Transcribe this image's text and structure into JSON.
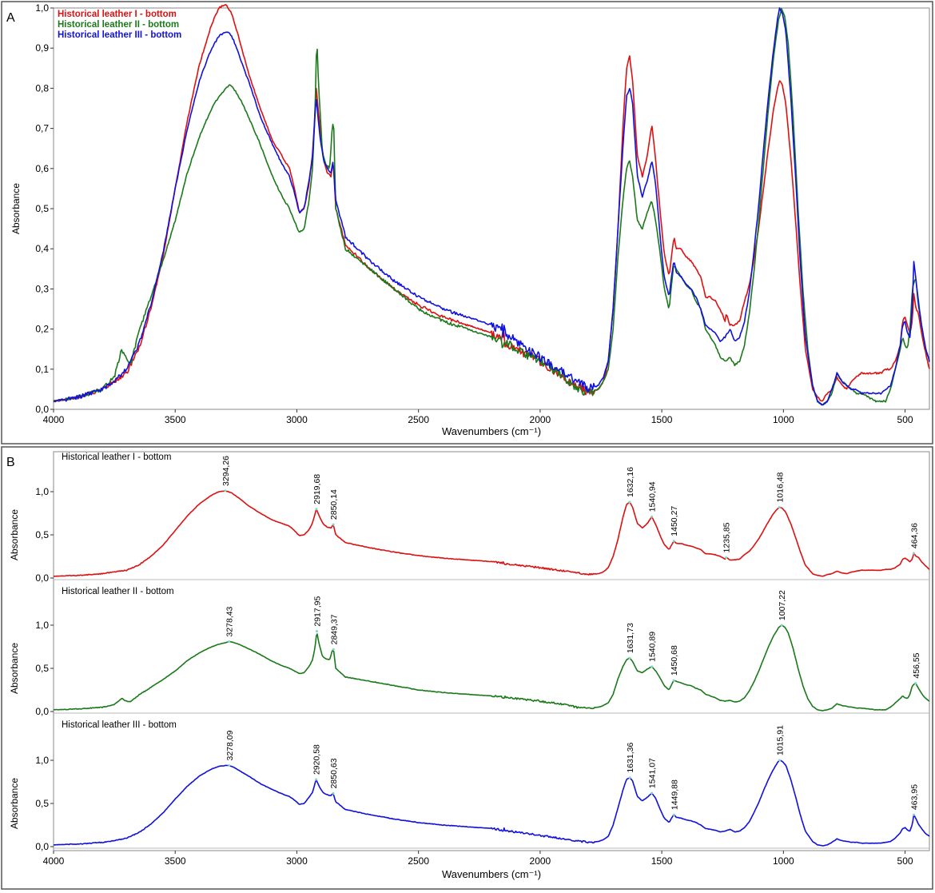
{
  "figure": {
    "panel_a_label": "A",
    "panel_b_label": "B"
  },
  "colors": {
    "leather_1": "#dd1111",
    "leather_2": "#1a7a1a",
    "leather_3": "#1111dd"
  },
  "chart_data": [
    {
      "type": "line",
      "panel": "A",
      "xlabel": "Wavenumbers (cm⁻¹)",
      "ylabel": "Absorbance",
      "xlim": [
        4000,
        400
      ],
      "ylim": [
        0,
        1.0
      ],
      "x_ticks": [
        4000,
        3500,
        3000,
        2500,
        2000,
        1500,
        1000,
        500
      ],
      "x_tick_labels": [
        "4000",
        "3500",
        "3000",
        "2500",
        "2000",
        "1500",
        "1000",
        "500"
      ],
      "y_ticks": [
        0,
        0.1,
        0.2,
        0.3,
        0.4,
        0.5,
        0.6,
        0.7,
        0.8,
        0.9,
        1.0
      ],
      "y_tick_labels": [
        "0,0",
        "0,1",
        "0,2",
        "0,3",
        "0,4",
        "0,5",
        "0,6",
        "0,7",
        "0,8",
        "0,9",
        "1,0"
      ],
      "legend_position": "top-left",
      "series": [
        {
          "name": "Historical leather I - bottom",
          "color": "#dd1111",
          "x": [
            4000,
            3900,
            3800,
            3750,
            3700,
            3650,
            3600,
            3550,
            3500,
            3450,
            3400,
            3350,
            3320,
            3294,
            3270,
            3240,
            3200,
            3150,
            3100,
            3060,
            3030,
            3010,
            2990,
            2970,
            2950,
            2935,
            2920,
            2905,
            2890,
            2875,
            2860,
            2850,
            2840,
            2800,
            2700,
            2600,
            2500,
            2400,
            2300,
            2200,
            2150,
            2100,
            2000,
            1900,
            1850,
            1800,
            1760,
            1740,
            1720,
            1700,
            1680,
            1660,
            1645,
            1632,
            1620,
            1600,
            1580,
            1560,
            1541,
            1525,
            1505,
            1490,
            1470,
            1460,
            1450,
            1440,
            1420,
            1400,
            1380,
            1360,
            1340,
            1320,
            1300,
            1280,
            1260,
            1240,
            1235,
            1220,
            1200,
            1180,
            1160,
            1140,
            1120,
            1100,
            1080,
            1060,
            1040,
            1025,
            1016,
            1005,
            990,
            970,
            950,
            930,
            910,
            880,
            860,
            840,
            820,
            800,
            780,
            760,
            740,
            720,
            700,
            680,
            650,
            620,
            600,
            580,
            560,
            540,
            520,
            510,
            500,
            490,
            480,
            470,
            464,
            455,
            445,
            430,
            415,
            400
          ],
          "y": [
            0.02,
            0.03,
            0.05,
            0.07,
            0.09,
            0.15,
            0.25,
            0.38,
            0.55,
            0.72,
            0.86,
            0.96,
            1.0,
            1.01,
            0.99,
            0.93,
            0.84,
            0.75,
            0.67,
            0.63,
            0.6,
            0.55,
            0.49,
            0.5,
            0.56,
            0.64,
            0.8,
            0.7,
            0.62,
            0.59,
            0.58,
            0.62,
            0.5,
            0.41,
            0.35,
            0.3,
            0.26,
            0.23,
            0.21,
            0.19,
            0.17,
            0.15,
            0.12,
            0.08,
            0.06,
            0.04,
            0.05,
            0.07,
            0.12,
            0.25,
            0.45,
            0.7,
            0.85,
            0.88,
            0.82,
            0.63,
            0.58,
            0.63,
            0.71,
            0.62,
            0.48,
            0.39,
            0.33,
            0.38,
            0.43,
            0.4,
            0.4,
            0.38,
            0.37,
            0.35,
            0.33,
            0.28,
            0.28,
            0.27,
            0.25,
            0.22,
            0.24,
            0.21,
            0.21,
            0.22,
            0.27,
            0.31,
            0.38,
            0.46,
            0.56,
            0.66,
            0.75,
            0.8,
            0.82,
            0.81,
            0.76,
            0.63,
            0.47,
            0.3,
            0.15,
            0.05,
            0.03,
            0.02,
            0.04,
            0.05,
            0.08,
            0.06,
            0.05,
            0.07,
            0.08,
            0.09,
            0.09,
            0.09,
            0.09,
            0.1,
            0.1,
            0.12,
            0.16,
            0.22,
            0.23,
            0.21,
            0.19,
            0.22,
            0.29,
            0.25,
            0.24,
            0.18,
            0.14,
            0.1
          ]
        },
        {
          "name": "Historical leather II - bottom",
          "color": "#1a7a1a",
          "x": [
            4000,
            3900,
            3800,
            3750,
            3720,
            3705,
            3690,
            3680,
            3650,
            3600,
            3550,
            3500,
            3450,
            3400,
            3350,
            3320,
            3290,
            3278,
            3260,
            3230,
            3200,
            3150,
            3100,
            3060,
            3030,
            3010,
            2990,
            2970,
            2950,
            2935,
            2925,
            2918,
            2910,
            2895,
            2880,
            2865,
            2855,
            2849,
            2840,
            2800,
            2700,
            2600,
            2500,
            2400,
            2300,
            2200,
            2150,
            2100,
            2000,
            1900,
            1850,
            1800,
            1760,
            1740,
            1720,
            1700,
            1680,
            1660,
            1645,
            1632,
            1620,
            1600,
            1580,
            1560,
            1541,
            1525,
            1505,
            1490,
            1470,
            1460,
            1451,
            1440,
            1420,
            1400,
            1380,
            1360,
            1340,
            1320,
            1300,
            1280,
            1260,
            1240,
            1220,
            1200,
            1180,
            1160,
            1140,
            1120,
            1100,
            1080,
            1060,
            1040,
            1020,
            1007,
            995,
            980,
            960,
            940,
            920,
            900,
            880,
            860,
            840,
            820,
            800,
            780,
            760,
            740,
            720,
            700,
            680,
            650,
            620,
            600,
            580,
            560,
            540,
            520,
            510,
            500,
            490,
            480,
            470,
            457,
            445,
            430,
            415,
            400
          ],
          "y": [
            0.02,
            0.03,
            0.05,
            0.08,
            0.15,
            0.13,
            0.11,
            0.12,
            0.19,
            0.28,
            0.37,
            0.47,
            0.59,
            0.68,
            0.75,
            0.78,
            0.8,
            0.81,
            0.8,
            0.77,
            0.73,
            0.66,
            0.58,
            0.53,
            0.5,
            0.47,
            0.44,
            0.45,
            0.52,
            0.6,
            0.75,
            0.93,
            0.8,
            0.64,
            0.61,
            0.6,
            0.7,
            0.72,
            0.5,
            0.4,
            0.35,
            0.3,
            0.25,
            0.22,
            0.2,
            0.18,
            0.17,
            0.15,
            0.12,
            0.08,
            0.05,
            0.04,
            0.05,
            0.07,
            0.1,
            0.2,
            0.38,
            0.52,
            0.6,
            0.62,
            0.58,
            0.47,
            0.45,
            0.49,
            0.52,
            0.47,
            0.38,
            0.3,
            0.25,
            0.31,
            0.36,
            0.35,
            0.33,
            0.31,
            0.3,
            0.27,
            0.25,
            0.2,
            0.18,
            0.16,
            0.13,
            0.12,
            0.13,
            0.11,
            0.12,
            0.16,
            0.24,
            0.35,
            0.48,
            0.62,
            0.76,
            0.88,
            0.97,
            1.0,
            0.98,
            0.91,
            0.73,
            0.5,
            0.3,
            0.15,
            0.06,
            0.02,
            0.01,
            0.02,
            0.04,
            0.09,
            0.07,
            0.06,
            0.05,
            0.04,
            0.04,
            0.03,
            0.02,
            0.02,
            0.02,
            0.05,
            0.1,
            0.15,
            0.18,
            0.16,
            0.15,
            0.2,
            0.3,
            0.33,
            0.27,
            0.2,
            0.15,
            0.12
          ]
        },
        {
          "name": "Historical leather III - bottom",
          "color": "#1111dd",
          "x": [
            4000,
            3900,
            3800,
            3750,
            3700,
            3650,
            3600,
            3550,
            3500,
            3450,
            3400,
            3350,
            3320,
            3290,
            3278,
            3260,
            3230,
            3200,
            3150,
            3100,
            3060,
            3030,
            3010,
            2990,
            2970,
            2950,
            2935,
            2921,
            2905,
            2890,
            2875,
            2860,
            2851,
            2840,
            2800,
            2700,
            2600,
            2500,
            2400,
            2300,
            2200,
            2150,
            2100,
            2000,
            1900,
            1850,
            1800,
            1760,
            1740,
            1720,
            1700,
            1680,
            1660,
            1645,
            1631,
            1620,
            1600,
            1580,
            1560,
            1541,
            1525,
            1505,
            1490,
            1470,
            1460,
            1450,
            1440,
            1420,
            1400,
            1380,
            1360,
            1340,
            1320,
            1300,
            1280,
            1260,
            1240,
            1220,
            1200,
            1180,
            1160,
            1140,
            1120,
            1100,
            1080,
            1060,
            1040,
            1025,
            1016,
            1005,
            990,
            970,
            950,
            930,
            910,
            880,
            860,
            840,
            820,
            800,
            780,
            760,
            740,
            720,
            700,
            680,
            650,
            620,
            600,
            580,
            560,
            540,
            520,
            510,
            500,
            490,
            480,
            470,
            464,
            455,
            445,
            430,
            415,
            400
          ],
          "y": [
            0.02,
            0.03,
            0.05,
            0.07,
            0.1,
            0.16,
            0.26,
            0.39,
            0.55,
            0.7,
            0.82,
            0.9,
            0.93,
            0.94,
            0.94,
            0.92,
            0.87,
            0.82,
            0.73,
            0.66,
            0.61,
            0.58,
            0.54,
            0.49,
            0.5,
            0.57,
            0.63,
            0.78,
            0.68,
            0.62,
            0.6,
            0.59,
            0.62,
            0.52,
            0.43,
            0.37,
            0.32,
            0.28,
            0.25,
            0.23,
            0.21,
            0.19,
            0.17,
            0.13,
            0.09,
            0.07,
            0.05,
            0.06,
            0.08,
            0.12,
            0.25,
            0.45,
            0.65,
            0.78,
            0.8,
            0.76,
            0.58,
            0.53,
            0.57,
            0.62,
            0.56,
            0.42,
            0.33,
            0.28,
            0.33,
            0.37,
            0.34,
            0.33,
            0.31,
            0.3,
            0.28,
            0.25,
            0.21,
            0.2,
            0.19,
            0.17,
            0.18,
            0.2,
            0.17,
            0.18,
            0.22,
            0.29,
            0.4,
            0.52,
            0.66,
            0.79,
            0.9,
            0.97,
            1.0,
            0.99,
            0.94,
            0.78,
            0.58,
            0.36,
            0.18,
            0.06,
            0.02,
            0.01,
            0.02,
            0.05,
            0.09,
            0.07,
            0.06,
            0.05,
            0.05,
            0.04,
            0.04,
            0.04,
            0.04,
            0.05,
            0.06,
            0.1,
            0.16,
            0.21,
            0.22,
            0.19,
            0.18,
            0.26,
            0.37,
            0.32,
            0.26,
            0.2,
            0.15,
            0.12
          ]
        }
      ]
    },
    {
      "type": "line",
      "panel": "B",
      "xlabel": "Wavenumbers (cm⁻¹)",
      "xlim": [
        4000,
        400
      ],
      "x_ticks": [
        4000,
        3500,
        3000,
        2500,
        2000,
        1500,
        1000,
        500
      ],
      "x_tick_labels": [
        "4000",
        "3500",
        "3000",
        "2500",
        "2000",
        "1500",
        "1000",
        "500"
      ],
      "subplots": [
        {
          "title": "Historical leather I - bottom",
          "ylabel": "Absorbance",
          "ylim": [
            0,
            1.2
          ],
          "y_ticks": [
            0,
            0.5,
            1.0
          ],
          "y_tick_labels": [
            "0,0",
            "0,5",
            "1,0"
          ],
          "series_ref": 0,
          "peaks": [
            {
              "x": 3294.26,
              "label": "3294,26"
            },
            {
              "x": 2919.68,
              "label": "2919,68"
            },
            {
              "x": 2850.14,
              "label": "2850,14"
            },
            {
              "x": 1632.16,
              "label": "1632,16"
            },
            {
              "x": 1540.94,
              "label": "1540,94"
            },
            {
              "x": 1450.27,
              "label": "1450,27"
            },
            {
              "x": 1235.85,
              "label": "1235,85"
            },
            {
              "x": 1016.48,
              "label": "1016,48"
            },
            {
              "x": 464.36,
              "label": "464,36"
            }
          ]
        },
        {
          "title": "Historical leather II - bottom",
          "ylabel": "Absorbance",
          "ylim": [
            0,
            1.2
          ],
          "y_ticks": [
            0,
            0.5,
            1.0
          ],
          "y_tick_labels": [
            "0,0",
            "0,5",
            "1,0"
          ],
          "series_ref": 1,
          "peaks": [
            {
              "x": 3278.43,
              "label": "3278,43"
            },
            {
              "x": 2917.95,
              "label": "2917,95"
            },
            {
              "x": 2849.37,
              "label": "2849,37"
            },
            {
              "x": 1631.73,
              "label": "1631,73"
            },
            {
              "x": 1540.89,
              "label": "1540,89"
            },
            {
              "x": 1450.68,
              "label": "1450,68"
            },
            {
              "x": 1007.22,
              "label": "1007,22"
            },
            {
              "x": 456.55,
              "label": "456,55"
            }
          ]
        },
        {
          "title": "Historical leather III - bottom",
          "ylabel": "Absorbance",
          "ylim": [
            0,
            1.2
          ],
          "y_ticks": [
            0,
            0.5,
            1.0
          ],
          "y_tick_labels": [
            "0,0",
            "0,5",
            "1,0"
          ],
          "series_ref": 2,
          "peaks": [
            {
              "x": 3278.09,
              "label": "3278,09"
            },
            {
              "x": 2920.58,
              "label": "2920,58"
            },
            {
              "x": 2850.63,
              "label": "2850,63"
            },
            {
              "x": 1631.36,
              "label": "1631,36"
            },
            {
              "x": 1541.07,
              "label": "1541,07"
            },
            {
              "x": 1449.88,
              "label": "1449,88"
            },
            {
              "x": 1015.91,
              "label": "1015,91"
            },
            {
              "x": 463.95,
              "label": "463,95"
            }
          ]
        }
      ]
    }
  ]
}
